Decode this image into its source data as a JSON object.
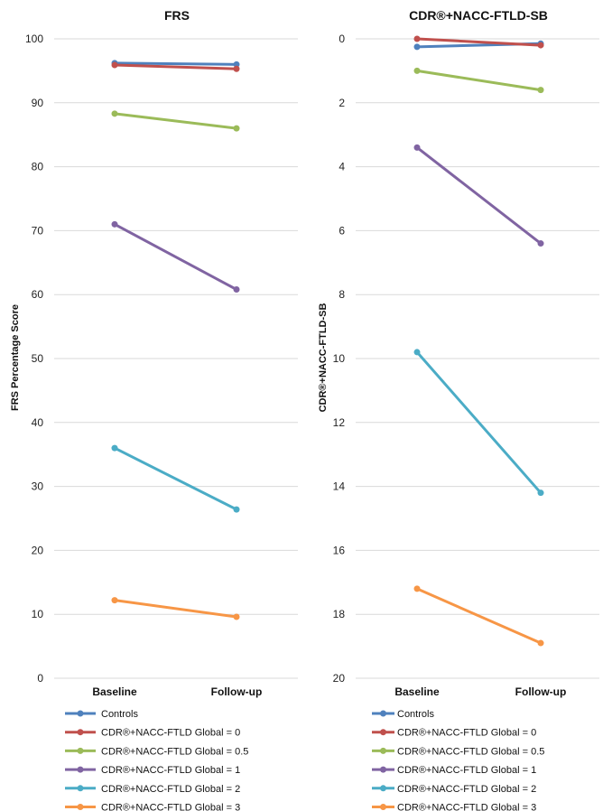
{
  "legend": [
    {
      "name": "Controls",
      "color": "#4F81BD"
    },
    {
      "name": "CDR®+NACC-FTLD Global = 0",
      "color": "#C0504D"
    },
    {
      "name": "CDR®+NACC-FTLD Global = 0.5",
      "color": "#9BBB59"
    },
    {
      "name": "CDR®+NACC-FTLD Global = 1",
      "color": "#8064A2"
    },
    {
      "name": "CDR®+NACC-FTLD Global = 2",
      "color": "#4BACC6"
    },
    {
      "name": "CDR®+NACC-FTLD Global = 3",
      "color": "#F79646"
    }
  ],
  "chart_data": [
    {
      "type": "line",
      "title": "FRS",
      "xlabel": "",
      "ylabel": "FRS Percentage Score",
      "categories": [
        "Baseline",
        "Follow-up"
      ],
      "ylim": [
        0,
        100
      ],
      "yticks": [
        0,
        10,
        20,
        30,
        40,
        50,
        60,
        70,
        80,
        90,
        100
      ],
      "inverted": false,
      "grid": true,
      "legend_position": "bottom",
      "series": [
        {
          "name": "Controls",
          "values": [
            96.2,
            96.0
          ]
        },
        {
          "name": "CDR®+NACC-FTLD Global = 0",
          "values": [
            95.9,
            95.3
          ]
        },
        {
          "name": "CDR®+NACC-FTLD Global = 0.5",
          "values": [
            88.3,
            86.0
          ]
        },
        {
          "name": "CDR®+NACC-FTLD Global = 1",
          "values": [
            71.0,
            60.8
          ]
        },
        {
          "name": "CDR®+NACC-FTLD Global = 2",
          "values": [
            36.0,
            26.4
          ]
        },
        {
          "name": "CDR®+NACC-FTLD Global = 3",
          "values": [
            12.2,
            9.6
          ]
        }
      ]
    },
    {
      "type": "line",
      "title": "CDR®+NACC-FTLD-SB",
      "xlabel": "",
      "ylabel": "CDR®+NACC-FTLD-SB",
      "categories": [
        "Baseline",
        "Follow-up"
      ],
      "ylim": [
        0,
        20
      ],
      "yticks": [
        0,
        2,
        4,
        6,
        8,
        10,
        12,
        14,
        16,
        18,
        20
      ],
      "inverted": true,
      "grid": true,
      "legend_position": "bottom",
      "series": [
        {
          "name": "Controls",
          "values": [
            0.25,
            0.15
          ]
        },
        {
          "name": "CDR®+NACC-FTLD Global = 0",
          "values": [
            0.0,
            0.2
          ]
        },
        {
          "name": "CDR®+NACC-FTLD Global = 0.5",
          "values": [
            1.0,
            1.6
          ]
        },
        {
          "name": "CDR®+NACC-FTLD Global = 1",
          "values": [
            3.4,
            6.4
          ]
        },
        {
          "name": "CDR®+NACC-FTLD Global = 2",
          "values": [
            9.8,
            14.2
          ]
        },
        {
          "name": "CDR®+NACC-FTLD Global = 3",
          "values": [
            17.2,
            18.9
          ]
        }
      ]
    }
  ]
}
